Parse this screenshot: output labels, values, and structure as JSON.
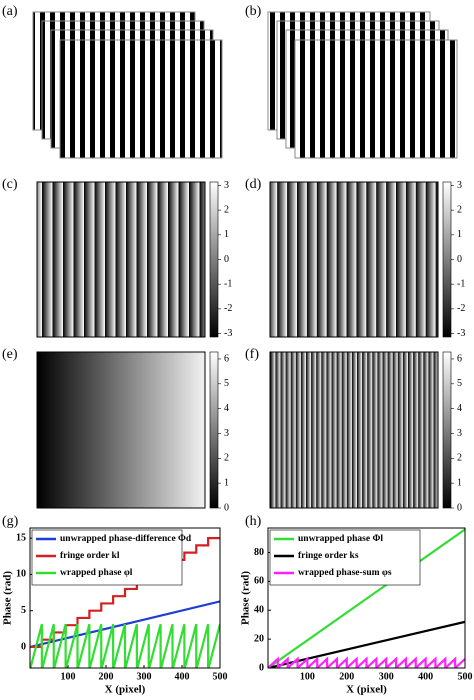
{
  "figure": {
    "panels": [
      {
        "label": "(a)"
      },
      {
        "label": "(b)"
      },
      {
        "label": "(c)",
        "colorbar": {
          "clim": [
            -3.14,
            3.14
          ],
          "ticks": [
            3,
            2,
            1,
            0,
            -1,
            -2,
            -3
          ]
        }
      },
      {
        "label": "(d)",
        "colorbar": {
          "clim": [
            -3.14,
            3.14
          ],
          "ticks": [
            3,
            2,
            1,
            0,
            -1,
            -2,
            -3
          ]
        }
      },
      {
        "label": "(e)",
        "colorbar": {
          "clim": [
            0,
            6.28
          ],
          "ticks": [
            6,
            5,
            4,
            3,
            2,
            1,
            0
          ]
        }
      },
      {
        "label": "(f)",
        "colorbar": {
          "clim": [
            0,
            6.28
          ],
          "ticks": [
            6,
            5,
            4,
            3,
            2,
            1,
            0
          ]
        }
      }
    ]
  },
  "chart_data": [
    {
      "type": "line",
      "label": "(g)",
      "x_label": "X (pixel)",
      "y_label": "Phase (rad)",
      "xlim": [
        0,
        500
      ],
      "xticks": [
        100,
        200,
        300,
        400,
        500
      ],
      "ylim": [
        -2.9,
        16.4
      ],
      "yticks": [
        0,
        5,
        10,
        15
      ],
      "legend": "upper left",
      "series": [
        {
          "name": "unwrapped phase-difference  Φd",
          "color": "#1a3fd1",
          "x": [
            0,
            500
          ],
          "values": [
            0,
            6.28
          ]
        },
        {
          "name": "fringe order  kl",
          "color": "#d42020",
          "x": [
            0,
            31.25,
            31.25,
            62.5,
            62.5,
            93.75,
            93.75,
            125,
            125,
            156.25,
            156.25,
            187.5,
            187.5,
            218.75,
            218.75,
            250,
            250,
            281.25,
            281.25,
            312.5,
            312.5,
            343.75,
            343.75,
            375,
            375,
            406.25,
            406.25,
            437.5,
            437.5,
            468.75,
            468.75,
            500
          ],
          "values": [
            0,
            0,
            1,
            1,
            2,
            2,
            3,
            3,
            4,
            4,
            5,
            5,
            6,
            6,
            7,
            7,
            8,
            8,
            9,
            9,
            10,
            10,
            11,
            11,
            12,
            12,
            13,
            13,
            14,
            14,
            15,
            15
          ]
        },
        {
          "name": "wrapped phase  φl",
          "color": "#33dd33",
          "x": [
            0,
            31.25,
            31.25,
            62.5,
            62.5,
            93.75,
            93.75,
            125,
            125,
            156.25,
            156.25,
            187.5,
            187.5,
            218.75,
            218.75,
            250,
            250,
            281.25,
            281.25,
            312.5,
            312.5,
            343.75,
            343.75,
            375,
            375,
            406.25,
            406.25,
            437.5,
            437.5,
            468.75,
            468.75,
            500
          ],
          "values": [
            -3.14,
            3.14,
            -3.14,
            3.14,
            -3.14,
            3.14,
            -3.14,
            3.14,
            -3.14,
            3.14,
            -3.14,
            3.14,
            -3.14,
            3.14,
            -3.14,
            3.14,
            -3.14,
            3.14,
            -3.14,
            3.14,
            -3.14,
            3.14,
            -3.14,
            3.14,
            -3.14,
            3.14,
            -3.14,
            3.14,
            -3.14,
            3.14,
            -3.14,
            3.14
          ]
        }
      ]
    },
    {
      "type": "line",
      "label": "(h)",
      "x_label": "X (pixel)",
      "y_label": "Phase (rad)",
      "xlim": [
        0,
        500
      ],
      "xticks": [
        100,
        200,
        300,
        400,
        500
      ],
      "ylim": [
        0,
        97
      ],
      "yticks": [
        0,
        20,
        40,
        60,
        80
      ],
      "legend": "upper left",
      "series": [
        {
          "name": "unwrapped phase  Φl",
          "color": "#33dd33",
          "x": [
            0,
            500
          ],
          "values": [
            0,
            96
          ]
        },
        {
          "name": "fringe order  ks",
          "color": "#000000",
          "x": [
            0,
            500
          ],
          "values": [
            0,
            32
          ]
        },
        {
          "name": "wrapped phase-sum  φs",
          "color": "#ff22ff",
          "x": [
            0,
            25,
            25,
            50,
            50,
            75,
            75,
            100,
            100,
            125,
            125,
            150,
            150,
            175,
            175,
            200,
            200,
            225,
            225,
            250,
            250,
            275,
            275,
            300,
            300,
            325,
            325,
            350,
            350,
            375,
            375,
            400,
            400,
            425,
            425,
            450,
            450,
            475,
            475,
            500
          ],
          "values": [
            0,
            6.28,
            0,
            6.28,
            0,
            6.28,
            0,
            6.28,
            0,
            6.28,
            0,
            6.28,
            0,
            6.28,
            0,
            6.28,
            0,
            6.28,
            0,
            6.28,
            0,
            6.28,
            0,
            6.28,
            0,
            6.28,
            0,
            6.28,
            0,
            6.28,
            0,
            6.28,
            0,
            6.28,
            0,
            6.28,
            0,
            6.28,
            0,
            6.28
          ]
        }
      ]
    }
  ]
}
